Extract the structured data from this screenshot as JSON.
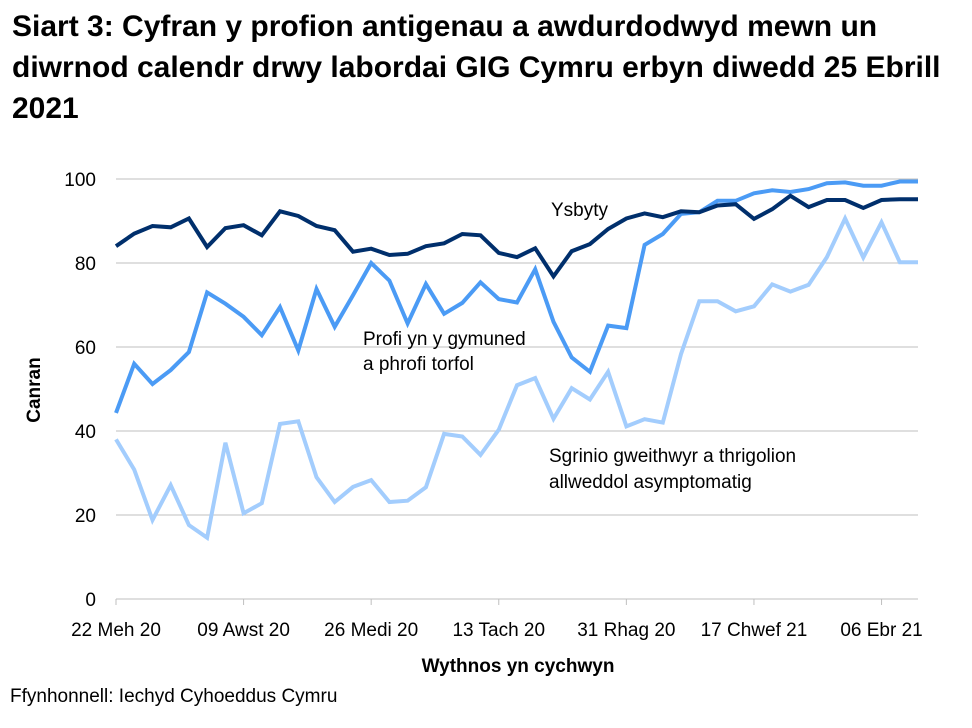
{
  "title": "Siart 3: Cyfran y profion antigenau a awdurdodwyd mewn un diwrnod calendr drwy labordai GIG Cymru erbyn diwedd 25 Ebrill 2021",
  "source": "Ffynhonnell: Iechyd Cyhoeddus Cymru",
  "colors": {
    "ysbyty": "#002f6c",
    "cymuned": "#4b9bf5",
    "sgrinio": "#a3cdfd",
    "grid": "#bfbfbf"
  },
  "annotations": {
    "ysbyty": "Ysbyty",
    "cymuned_line1": "Profi yn y gymuned",
    "cymuned_line2": "a phrofi torfol",
    "sgrinio_line1": "Sgrinio gweithwyr a thrigolion",
    "sgrinio_line2": "allweddol asymptomatig"
  },
  "chart_data": {
    "type": "line",
    "title": "Siart 3: Cyfran y profion antigenau a awdurdodwyd mewn un diwrnod calendr drwy labordai GIG Cymru erbyn diwedd 25 Ebrill 2021",
    "xlabel": "Wythnos yn cychwyn",
    "ylabel": "Canran",
    "ylim": [
      0,
      100
    ],
    "yticks": [
      0,
      20,
      40,
      60,
      80,
      100
    ],
    "grid": true,
    "legend_position": "inline labels",
    "x_tick_labels": [
      "22 Meh 20",
      "09 Awst 20",
      "26 Medi 20",
      "13 Tach 20",
      "31 Rhag 20",
      "17 Chwef 21",
      "06 Ebr 21"
    ],
    "x_tick_indices": [
      0,
      7,
      14,
      21,
      28,
      35,
      42
    ],
    "n_points": 45,
    "series": [
      {
        "name": "Ysbyty",
        "values": [
          84.0,
          87.0,
          88.8,
          88.5,
          90.6,
          83.8,
          88.3,
          89.0,
          86.6,
          92.3,
          91.2,
          88.8,
          87.8,
          82.7,
          83.4,
          81.9,
          82.2,
          84.0,
          84.7,
          86.9,
          86.6,
          82.4,
          81.4,
          83.5,
          76.8,
          82.8,
          84.5,
          88.1,
          90.6,
          91.8,
          90.9,
          92.3,
          92.1,
          93.7,
          94.0,
          90.5,
          92.8,
          96.0,
          93.3,
          95.0,
          95.0,
          93.1,
          95.0,
          95.2,
          95.2
        ]
      },
      {
        "name": "Profi yn y gymuned a phrofi torfol",
        "values": [
          44.3,
          56.0,
          51.2,
          54.5,
          58.8,
          73.0,
          70.3,
          67.2,
          62.8,
          69.5,
          59.2,
          73.8,
          64.8,
          72.3,
          80.0,
          75.8,
          65.6,
          75.0,
          67.9,
          70.5,
          75.4,
          71.4,
          70.6,
          78.5,
          66.0,
          57.5,
          54.1,
          65.1,
          64.5,
          84.3,
          86.9,
          91.7,
          92.1,
          94.8,
          94.8,
          96.6,
          97.3,
          96.9,
          97.6,
          99.0,
          99.2,
          98.4,
          98.4,
          99.4,
          99.4
        ]
      },
      {
        "name": "Sgrinio gweithwyr a thrigolion allweddol asymptomatig",
        "values": [
          38.0,
          30.8,
          18.8,
          27.1,
          17.6,
          14.6,
          37.2,
          20.4,
          22.8,
          41.7,
          42.3,
          29.0,
          23.1,
          26.7,
          28.3,
          23.1,
          23.4,
          26.6,
          39.3,
          38.7,
          34.3,
          40.3,
          50.9,
          52.6,
          42.9,
          50.2,
          47.5,
          54.1,
          41.1,
          42.8,
          42.0,
          58.3,
          70.9,
          70.9,
          68.5,
          69.7,
          74.9,
          73.2,
          74.8,
          81.4,
          90.6,
          81.3,
          89.7,
          80.2,
          80.2
        ]
      }
    ]
  }
}
